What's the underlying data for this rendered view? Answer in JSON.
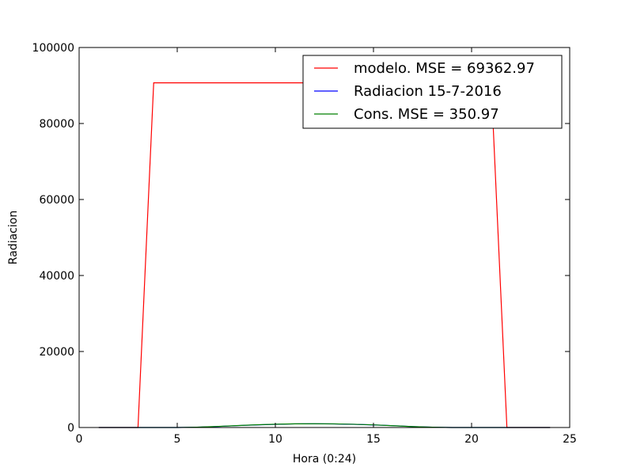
{
  "chart_data": {
    "type": "line",
    "xlabel": "Hora (0:24)",
    "ylabel": "Radiacion",
    "xlim": [
      0,
      25
    ],
    "ylim": [
      0,
      100000
    ],
    "xticks": [
      0,
      5,
      10,
      15,
      20,
      25
    ],
    "yticks": [
      0,
      20000,
      40000,
      60000,
      80000,
      100000
    ],
    "xtick_labels": [
      "0",
      "5",
      "10",
      "15",
      "20",
      "25"
    ],
    "ytick_labels": [
      "0",
      "20000",
      "40000",
      "60000",
      "80000",
      "100000"
    ],
    "grid": false,
    "legend_position": "top-right",
    "series": [
      {
        "name": "modelo. MSE = 69362.97",
        "color": "#ff0000",
        "x": [
          1,
          2,
          3,
          3.8,
          5,
          6,
          7,
          8,
          9,
          10,
          11,
          12,
          13,
          14,
          15,
          16,
          17,
          18,
          19,
          20,
          21,
          21.8,
          23,
          24
        ],
        "y": [
          0,
          0,
          0,
          90700,
          90700,
          90700,
          90700,
          90700,
          90700,
          90700,
          90700,
          90700,
          90700,
          90700,
          90700,
          90700,
          90700,
          90700,
          90700,
          90700,
          90700,
          0,
          0,
          0
        ]
      },
      {
        "name": "Radiacion 15-7-2016",
        "color": "#0000ff",
        "x": [
          1,
          2,
          3,
          4,
          5,
          6,
          7,
          8,
          9,
          10,
          11,
          12,
          13,
          14,
          15,
          16,
          17,
          18,
          19,
          20,
          21,
          22,
          23,
          24
        ],
        "y": [
          0,
          0,
          0,
          0,
          0,
          80,
          250,
          480,
          680,
          840,
          950,
          980,
          940,
          840,
          680,
          480,
          250,
          80,
          0,
          0,
          0,
          0,
          0,
          0
        ]
      },
      {
        "name": "Cons. MSE = 350.97",
        "color": "#008000",
        "x": [
          1,
          2,
          3,
          4,
          5,
          6,
          7,
          8,
          9,
          10,
          11,
          12,
          13,
          14,
          15,
          16,
          17,
          18,
          19,
          20,
          21,
          22,
          23,
          24
        ],
        "y": [
          0,
          0,
          0,
          0,
          0,
          90,
          270,
          500,
          700,
          860,
          960,
          990,
          950,
          850,
          690,
          470,
          240,
          70,
          0,
          0,
          0,
          0,
          0,
          0
        ]
      }
    ]
  }
}
